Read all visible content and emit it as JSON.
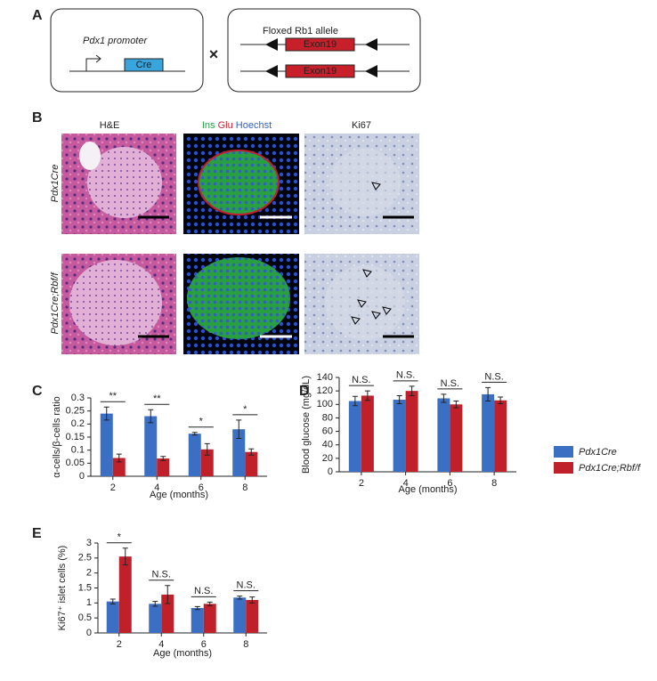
{
  "panel_labels": [
    "A",
    "B",
    "C",
    "D",
    "E"
  ],
  "panel_a": {
    "promoter": "Pdx1 promoter",
    "cre": "Cre",
    "cross": "×",
    "allele": "Floxed Rb1 allele",
    "exon_top": "Exon19",
    "exon_bottom": "Exon19"
  },
  "panel_b": {
    "columns": [
      "H&E",
      "Ki67"
    ],
    "stain": {
      "ins": "Ins",
      "glu": "Glu",
      "hoechst": "Hoechst"
    },
    "rows": [
      "Pdx1Cre",
      "Pdx1Cre;Rbf/f"
    ]
  },
  "chart_data": [
    {
      "type": "bar",
      "categories": [
        "2",
        "4",
        "6",
        "8"
      ],
      "x_label": "Age (months)",
      "y_label": "α-cells/β-cells ratio",
      "ylim": [
        0,
        0.3
      ],
      "yticks": [
        0,
        0.05,
        0.1,
        0.15,
        0.2,
        0.25,
        0.3
      ],
      "series": [
        {
          "name": "Pdx1Cre",
          "color": "#3a6fc4",
          "values": [
            0.24,
            0.23,
            0.163,
            0.18
          ],
          "errors": [
            0.025,
            0.025,
            0.005,
            0.035
          ]
        },
        {
          "name": "Pdx1Cre;Rbf/f",
          "color": "#c0202a",
          "values": [
            0.07,
            0.068,
            0.103,
            0.093
          ],
          "errors": [
            0.015,
            0.008,
            0.022,
            0.012
          ]
        }
      ],
      "annotations": [
        "**",
        "**",
        "*",
        "*"
      ]
    },
    {
      "type": "bar",
      "categories": [
        "2",
        "4",
        "6",
        "8"
      ],
      "x_label": "Age (months)",
      "y_label": "Blood glucose (mg/dL)",
      "ylim": [
        0,
        140
      ],
      "yticks": [
        0,
        20,
        40,
        60,
        80,
        100,
        120,
        140
      ],
      "series": [
        {
          "name": "Pdx1Cre",
          "color": "#3a6fc4",
          "values": [
            105,
            107,
            109,
            115
          ],
          "errors": [
            7,
            6,
            6,
            10
          ]
        },
        {
          "name": "Pdx1Cre;Rbf/f",
          "color": "#c0202a",
          "values": [
            113,
            120,
            100,
            106
          ],
          "errors": [
            7,
            7,
            5,
            5
          ]
        }
      ],
      "annotations": [
        "N.S.",
        "N.S.",
        "N.S.",
        "N.S."
      ]
    },
    {
      "type": "bar",
      "categories": [
        "2",
        "4",
        "6",
        "8"
      ],
      "x_label": "Age (months)",
      "y_label": "Ki67⁺ islet cells (%)",
      "ylim": [
        0,
        3
      ],
      "yticks": [
        0,
        0.5,
        1,
        1.5,
        2,
        2.5,
        3
      ],
      "series": [
        {
          "name": "Pdx1Cre",
          "color": "#3a6fc4",
          "values": [
            1.05,
            0.97,
            0.83,
            1.18
          ],
          "errors": [
            0.08,
            0.08,
            0.05,
            0.05
          ]
        },
        {
          "name": "Pdx1Cre;Rbf/f",
          "color": "#c0202a",
          "values": [
            2.55,
            1.28,
            0.97,
            1.1
          ],
          "errors": [
            0.28,
            0.3,
            0.06,
            0.1
          ]
        }
      ],
      "annotations": [
        "*",
        "N.S.",
        "N.S.",
        "N.S."
      ]
    }
  ]
}
